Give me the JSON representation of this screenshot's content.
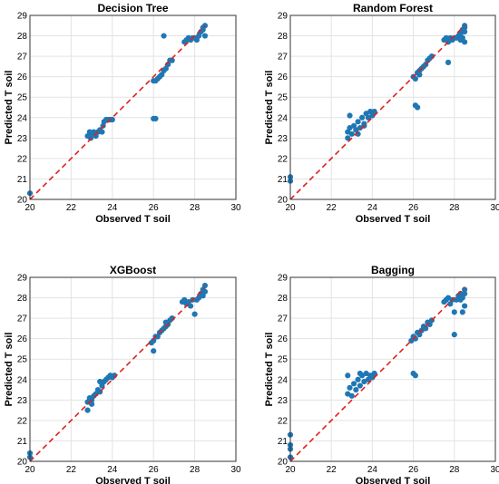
{
  "chart_data": [
    {
      "type": "scatter",
      "title": "Decision Tree",
      "xlabel": "Observed T  soil",
      "ylabel": "Predicted T soil",
      "xlim": [
        20,
        30
      ],
      "ylim": [
        20,
        29
      ],
      "xticks": [
        "20",
        "22",
        "24",
        "26",
        "28",
        "30"
      ],
      "yticks": [
        "20",
        "21",
        "22",
        "23",
        "24",
        "25",
        "26",
        "27",
        "28",
        "29"
      ],
      "grid": true,
      "point_color": "#1f77b4",
      "reference_line": {
        "from": [
          20,
          20
        ],
        "to": [
          28.5,
          28.5
        ],
        "color": "#e0201b",
        "style": "dashed"
      },
      "points": [
        [
          20.0,
          20.3
        ],
        [
          22.8,
          23.1
        ],
        [
          22.9,
          23.3
        ],
        [
          23.0,
          23.2
        ],
        [
          23.1,
          23.3
        ],
        [
          23.2,
          23.1
        ],
        [
          23.3,
          23.3
        ],
        [
          23.4,
          23.4
        ],
        [
          23.5,
          23.3
        ],
        [
          23.6,
          23.8
        ],
        [
          23.7,
          23.9
        ],
        [
          23.8,
          23.9
        ],
        [
          23.9,
          23.9
        ],
        [
          24.0,
          23.9
        ],
        [
          22.95,
          23.0
        ],
        [
          23.55,
          23.6
        ],
        [
          26.0,
          25.8
        ],
        [
          26.1,
          25.8
        ],
        [
          26.2,
          25.9
        ],
        [
          26.3,
          26.0
        ],
        [
          26.4,
          26.1
        ],
        [
          26.5,
          26.3
        ],
        [
          26.6,
          26.4
        ],
        [
          26.7,
          26.6
        ],
        [
          26.8,
          26.8
        ],
        [
          26.9,
          26.8
        ],
        [
          26.5,
          28.0
        ],
        [
          26.1,
          23.95
        ],
        [
          26.0,
          23.95
        ],
        [
          27.5,
          27.7
        ],
        [
          27.6,
          27.8
        ],
        [
          27.7,
          27.9
        ],
        [
          27.8,
          27.8
        ],
        [
          27.9,
          27.9
        ],
        [
          28.0,
          27.9
        ],
        [
          28.1,
          27.8
        ],
        [
          28.2,
          28.0
        ],
        [
          28.3,
          28.2
        ],
        [
          28.4,
          28.3
        ],
        [
          28.5,
          28.5
        ],
        [
          28.4,
          28.4
        ],
        [
          28.5,
          28.0
        ]
      ]
    },
    {
      "type": "scatter",
      "title": "Random Forest",
      "xlabel": "Observed T  soil",
      "ylabel": "Predicted T soil",
      "xlim": [
        20,
        30
      ],
      "ylim": [
        20,
        29
      ],
      "xticks": [
        "20",
        "22",
        "24",
        "26",
        "28",
        "30"
      ],
      "yticks": [
        "20",
        "21",
        "22",
        "23",
        "24",
        "25",
        "26",
        "27",
        "28",
        "29"
      ],
      "grid": true,
      "point_color": "#1f77b4",
      "reference_line": {
        "from": [
          20,
          20
        ],
        "to": [
          28.5,
          28.5
        ],
        "color": "#e0201b",
        "style": "dashed"
      },
      "points": [
        [
          20.0,
          21.1
        ],
        [
          20.0,
          20.9
        ],
        [
          22.8,
          23.0
        ],
        [
          22.8,
          23.3
        ],
        [
          22.9,
          23.5
        ],
        [
          22.9,
          24.1
        ],
        [
          23.0,
          23.2
        ],
        [
          23.1,
          23.6
        ],
        [
          23.2,
          23.4
        ],
        [
          23.3,
          23.8
        ],
        [
          23.4,
          23.5
        ],
        [
          23.5,
          24.0
        ],
        [
          23.6,
          23.7
        ],
        [
          23.7,
          24.2
        ],
        [
          23.8,
          24.0
        ],
        [
          23.9,
          24.3
        ],
        [
          24.0,
          24.1
        ],
        [
          24.1,
          24.3
        ],
        [
          23.3,
          23.2
        ],
        [
          23.6,
          23.6
        ],
        [
          26.0,
          26.0
        ],
        [
          26.1,
          25.9
        ],
        [
          26.2,
          26.2
        ],
        [
          26.3,
          26.1
        ],
        [
          26.4,
          26.4
        ],
        [
          26.5,
          26.5
        ],
        [
          26.6,
          26.6
        ],
        [
          26.7,
          26.8
        ],
        [
          26.8,
          26.9
        ],
        [
          26.9,
          27.0
        ],
        [
          26.3,
          26.3
        ],
        [
          26.2,
          24.5
        ],
        [
          26.1,
          24.6
        ],
        [
          27.5,
          27.8
        ],
        [
          27.6,
          27.9
        ],
        [
          27.7,
          27.7
        ],
        [
          27.8,
          27.9
        ],
        [
          27.9,
          27.8
        ],
        [
          28.0,
          27.9
        ],
        [
          27.7,
          26.7
        ],
        [
          28.1,
          27.9
        ],
        [
          28.2,
          28.0
        ],
        [
          28.3,
          28.1
        ],
        [
          28.4,
          28.3
        ],
        [
          28.5,
          28.5
        ],
        [
          28.5,
          28.2
        ],
        [
          28.4,
          27.9
        ],
        [
          28.5,
          27.7
        ],
        [
          28.3,
          27.8
        ],
        [
          28.5,
          28.4
        ]
      ]
    },
    {
      "type": "scatter",
      "title": "XGBoost",
      "xlabel": "Observed T soil",
      "ylabel": "Predicted T soil",
      "xlim": [
        20,
        30
      ],
      "ylim": [
        20,
        29
      ],
      "xticks": [
        "20",
        "22",
        "24",
        "26",
        "28",
        "30"
      ],
      "yticks": [
        "20",
        "21",
        "22",
        "23",
        "24",
        "25",
        "26",
        "27",
        "28",
        "29"
      ],
      "grid": true,
      "point_color": "#1f77b4",
      "reference_line": {
        "from": [
          20,
          20
        ],
        "to": [
          28.5,
          28.5
        ],
        "color": "#e0201b",
        "style": "dashed"
      },
      "points": [
        [
          20.0,
          20.4
        ],
        [
          20.0,
          20.2
        ],
        [
          22.8,
          22.9
        ],
        [
          22.8,
          22.5
        ],
        [
          22.9,
          23.1
        ],
        [
          23.0,
          23.0
        ],
        [
          23.1,
          23.2
        ],
        [
          23.2,
          23.3
        ],
        [
          23.3,
          23.5
        ],
        [
          23.4,
          23.4
        ],
        [
          23.5,
          23.7
        ],
        [
          23.6,
          23.9
        ],
        [
          23.7,
          24.0
        ],
        [
          23.8,
          24.1
        ],
        [
          23.9,
          24.2
        ],
        [
          24.0,
          24.1
        ],
        [
          24.1,
          24.2
        ],
        [
          23.4,
          23.9
        ],
        [
          23.0,
          22.8
        ],
        [
          25.9,
          25.8
        ],
        [
          26.0,
          25.9
        ],
        [
          26.1,
          26.1
        ],
        [
          26.2,
          26.1
        ],
        [
          26.3,
          26.3
        ],
        [
          26.4,
          26.4
        ],
        [
          26.5,
          26.5
        ],
        [
          26.6,
          26.6
        ],
        [
          26.7,
          26.7
        ],
        [
          26.8,
          26.9
        ],
        [
          26.9,
          27.0
        ],
        [
          26.0,
          25.4
        ],
        [
          26.6,
          26.8
        ],
        [
          27.4,
          27.8
        ],
        [
          27.5,
          27.9
        ],
        [
          27.6,
          27.7
        ],
        [
          27.7,
          27.8
        ],
        [
          27.8,
          27.6
        ],
        [
          27.9,
          27.9
        ],
        [
          28.0,
          27.2
        ],
        [
          28.1,
          27.9
        ],
        [
          28.2,
          28.0
        ],
        [
          28.3,
          28.2
        ],
        [
          28.4,
          28.4
        ],
        [
          28.5,
          28.6
        ],
        [
          28.4,
          28.1
        ],
        [
          28.5,
          28.3
        ]
      ]
    },
    {
      "type": "scatter",
      "title": "Bagging",
      "xlabel": "Observed T  soil",
      "ylabel": "Predicted T soil",
      "xlim": [
        20,
        30
      ],
      "ylim": [
        20,
        29
      ],
      "xticks": [
        "20",
        "22",
        "24",
        "26",
        "28",
        "30"
      ],
      "yticks": [
        "20",
        "21",
        "22",
        "23",
        "24",
        "25",
        "26",
        "27",
        "28",
        "29"
      ],
      "grid": true,
      "point_color": "#1f77b4",
      "reference_line": {
        "from": [
          20,
          20
        ],
        "to": [
          28.5,
          28.5
        ],
        "color": "#e0201b",
        "style": "dashed"
      },
      "points": [
        [
          20.0,
          21.3
        ],
        [
          20.0,
          20.8
        ],
        [
          20.0,
          20.6
        ],
        [
          20.0,
          20.2
        ],
        [
          22.8,
          23.3
        ],
        [
          22.8,
          24.2
        ],
        [
          22.9,
          23.6
        ],
        [
          23.0,
          23.2
        ],
        [
          23.1,
          23.8
        ],
        [
          23.2,
          23.5
        ],
        [
          23.3,
          24.0
        ],
        [
          23.4,
          23.7
        ],
        [
          23.5,
          24.2
        ],
        [
          23.6,
          23.9
        ],
        [
          23.7,
          24.3
        ],
        [
          23.8,
          24.0
        ],
        [
          23.9,
          24.2
        ],
        [
          24.0,
          24.1
        ],
        [
          24.1,
          24.3
        ],
        [
          23.4,
          24.3
        ],
        [
          25.9,
          25.9
        ],
        [
          26.0,
          26.1
        ],
        [
          26.1,
          26.0
        ],
        [
          26.2,
          26.3
        ],
        [
          26.3,
          26.2
        ],
        [
          26.4,
          26.4
        ],
        [
          26.5,
          26.6
        ],
        [
          26.6,
          26.5
        ],
        [
          26.7,
          26.8
        ],
        [
          26.8,
          26.7
        ],
        [
          26.9,
          26.9
        ],
        [
          26.0,
          24.3
        ],
        [
          26.1,
          24.2
        ],
        [
          27.5,
          27.8
        ],
        [
          27.6,
          27.9
        ],
        [
          27.7,
          28.0
        ],
        [
          27.8,
          27.7
        ],
        [
          27.9,
          27.9
        ],
        [
          28.0,
          27.3
        ],
        [
          28.0,
          26.2
        ],
        [
          28.1,
          27.9
        ],
        [
          28.2,
          28.1
        ],
        [
          28.3,
          28.2
        ],
        [
          28.4,
          28.0
        ],
        [
          28.5,
          28.4
        ],
        [
          28.5,
          27.6
        ],
        [
          28.4,
          27.3
        ],
        [
          28.3,
          27.9
        ],
        [
          28.5,
          28.2
        ]
      ]
    }
  ]
}
